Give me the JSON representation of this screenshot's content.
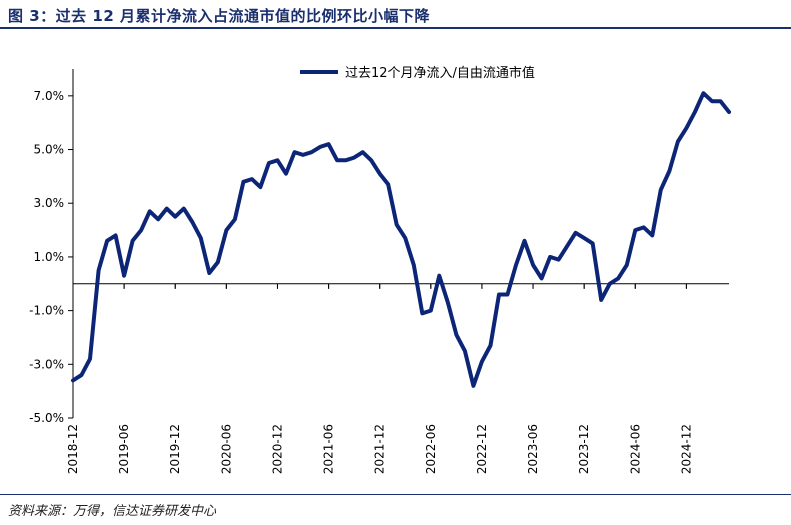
{
  "title": "图 3：过去 12 月累计净流入占流通市值的比例环比小幅下降",
  "source": "资料来源：万得，信达证券研发中心",
  "colors": {
    "series": "#0c2577",
    "accent": "#1a2f6e",
    "axis": "#000000"
  },
  "chart_data": {
    "type": "line",
    "title": "",
    "xlabel": "",
    "ylabel": "",
    "ylim": [
      -5.0,
      8.0
    ],
    "y_ticks": [
      -5.0,
      -3.0,
      -1.0,
      1.0,
      3.0,
      5.0,
      7.0
    ],
    "y_tick_labels": [
      "-5.0%",
      "-3.0%",
      "-1.0%",
      "1.0%",
      "3.0%",
      "5.0%",
      "7.0%"
    ],
    "x_tick_labels": [
      "2018-12",
      "2019-06",
      "2019-12",
      "2020-06",
      "2020-12",
      "2021-06",
      "2021-12",
      "2022-06",
      "2022-12",
      "2023-06",
      "2023-12",
      "2024-06",
      "2024-12"
    ],
    "x_tick_dates": [
      "2018-12",
      "2019-06",
      "2019-12",
      "2020-06",
      "2020-12",
      "2021-06",
      "2021-12",
      "2022-06",
      "2022-12",
      "2023-06",
      "2023-12",
      "2024-06",
      "2024-12"
    ],
    "legend_position": "top-right",
    "grid": false,
    "series": [
      {
        "name": "过去12个月净流入/自由流通市值",
        "x": [
          "2018-12",
          "2019-01",
          "2019-02",
          "2019-03",
          "2019-04",
          "2019-05",
          "2019-06",
          "2019-07",
          "2019-08",
          "2019-09",
          "2019-10",
          "2019-11",
          "2019-12",
          "2020-01",
          "2020-02",
          "2020-03",
          "2020-04",
          "2020-05",
          "2020-06",
          "2020-07",
          "2020-08",
          "2020-09",
          "2020-10",
          "2020-11",
          "2020-12",
          "2021-01",
          "2021-02",
          "2021-03",
          "2021-04",
          "2021-05",
          "2021-06",
          "2021-07",
          "2021-08",
          "2021-09",
          "2021-10",
          "2021-11",
          "2021-12",
          "2022-01",
          "2022-02",
          "2022-03",
          "2022-04",
          "2022-05",
          "2022-06",
          "2022-07",
          "2022-08",
          "2022-09",
          "2022-10",
          "2022-11",
          "2022-12",
          "2023-01",
          "2023-02",
          "2023-03",
          "2023-04",
          "2023-05",
          "2023-06",
          "2023-07",
          "2023-08",
          "2023-09",
          "2023-10",
          "2023-11",
          "2023-12",
          "2024-01",
          "2024-02",
          "2024-03",
          "2024-04",
          "2024-05",
          "2024-06",
          "2024-07",
          "2024-08",
          "2024-09",
          "2024-10",
          "2024-11",
          "2024-12",
          "2025-01",
          "2025-02",
          "2025-03",
          "2025-04",
          "2025-05"
        ],
        "values": [
          -3.6,
          -3.4,
          -2.8,
          0.5,
          1.6,
          1.8,
          0.3,
          1.6,
          2.0,
          2.7,
          2.4,
          2.8,
          2.5,
          2.8,
          2.3,
          1.7,
          0.4,
          0.8,
          2.0,
          2.4,
          3.8,
          3.9,
          3.6,
          4.5,
          4.6,
          4.1,
          4.9,
          4.8,
          4.9,
          5.1,
          5.2,
          4.6,
          4.6,
          4.7,
          4.9,
          4.6,
          4.1,
          3.7,
          2.2,
          1.7,
          0.7,
          -1.1,
          -1.0,
          0.3,
          -0.7,
          -1.9,
          -2.5,
          -3.8,
          -2.9,
          -2.3,
          -0.4,
          -0.4,
          0.7,
          1.6,
          0.7,
          0.2,
          1.0,
          0.9,
          1.4,
          1.9,
          1.7,
          1.5,
          -0.6,
          0.0,
          0.2,
          0.7,
          2.0,
          2.1,
          1.8,
          3.5,
          4.2,
          5.3,
          5.8,
          6.4,
          7.1,
          6.8,
          6.8,
          6.4
        ]
      }
    ]
  }
}
